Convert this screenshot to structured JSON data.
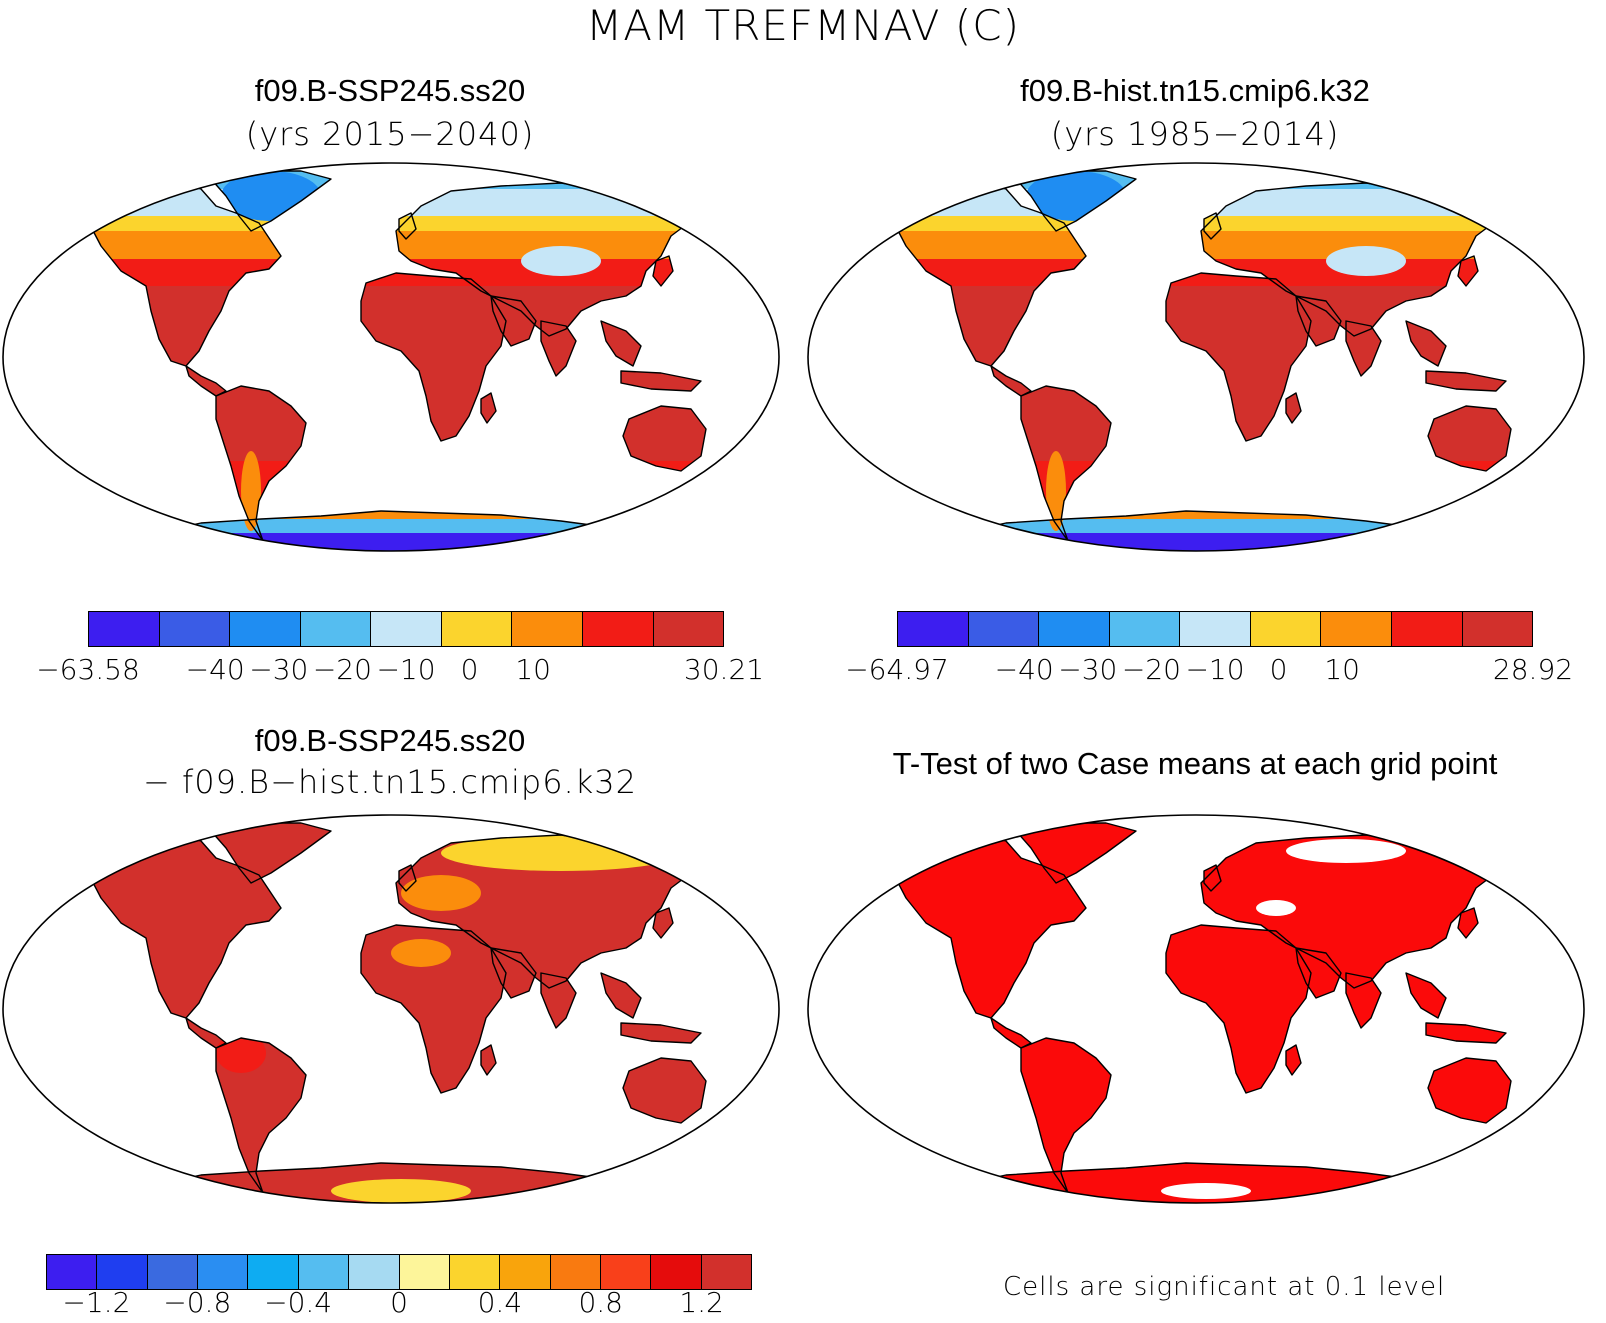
{
  "figure": {
    "title": "MAM TREFMNAV (C)"
  },
  "panels": [
    {
      "title": "f09.B-SSP245.ss20",
      "subtitle": "(yrs 2015−2040)",
      "colorbar": {
        "colors": [
          "#3d1ef0",
          "#3a5ce6",
          "#1f8df2",
          "#55bdf0",
          "#c6e6f7",
          "#fbd42d",
          "#fb8d0c",
          "#f21c16",
          "#d2302c"
        ],
        "labels": [
          "−63.58",
          "−40",
          "−30",
          "−20",
          "−10",
          "0",
          "10",
          "30.21"
        ]
      }
    },
    {
      "title": "f09.B-hist.tn15.cmip6.k32",
      "subtitle": "(yrs 1985−2014)",
      "colorbar": {
        "colors": [
          "#3d1ef0",
          "#3a5ce6",
          "#1f8df2",
          "#55bdf0",
          "#c6e6f7",
          "#fbd42d",
          "#fb8d0c",
          "#f21c16",
          "#d2302c"
        ],
        "labels": [
          "−64.97",
          "−40",
          "−30",
          "−20",
          "−10",
          "0",
          "10",
          "28.92"
        ]
      }
    },
    {
      "title": "f09.B-SSP245.ss20",
      "subtitle": "− f09.B−hist.tn15.cmip6.k32",
      "colorbar": {
        "colors": [
          "#3d1ef0",
          "#1f3ef0",
          "#3a6ae0",
          "#2a8ef2",
          "#0eacf2",
          "#55bdf0",
          "#a6daf2",
          "#fdf59a",
          "#fbd42d",
          "#f9a40c",
          "#f97a10",
          "#f9401a",
          "#e50c0c",
          "#d2302c"
        ],
        "labels": [
          "−1.2",
          "−0.8",
          "−0.4",
          "0",
          "0.4",
          "0.8",
          "1.2"
        ]
      }
    },
    {
      "title": "T-Test of two Case means at each grid point",
      "note": "Cells are significant at 0.1 level"
    }
  ],
  "map_colors": {
    "warm_land": "#d2302c",
    "hot_land": "#f21c16",
    "orange": "#fb8d0c",
    "yellow": "#fbd42d",
    "pale": "#c6e6f7",
    "cyan": "#55bdf0",
    "blue": "#1f8df2",
    "deep_blue": "#3d1ef0",
    "sig_red": "#fb0a0a"
  }
}
